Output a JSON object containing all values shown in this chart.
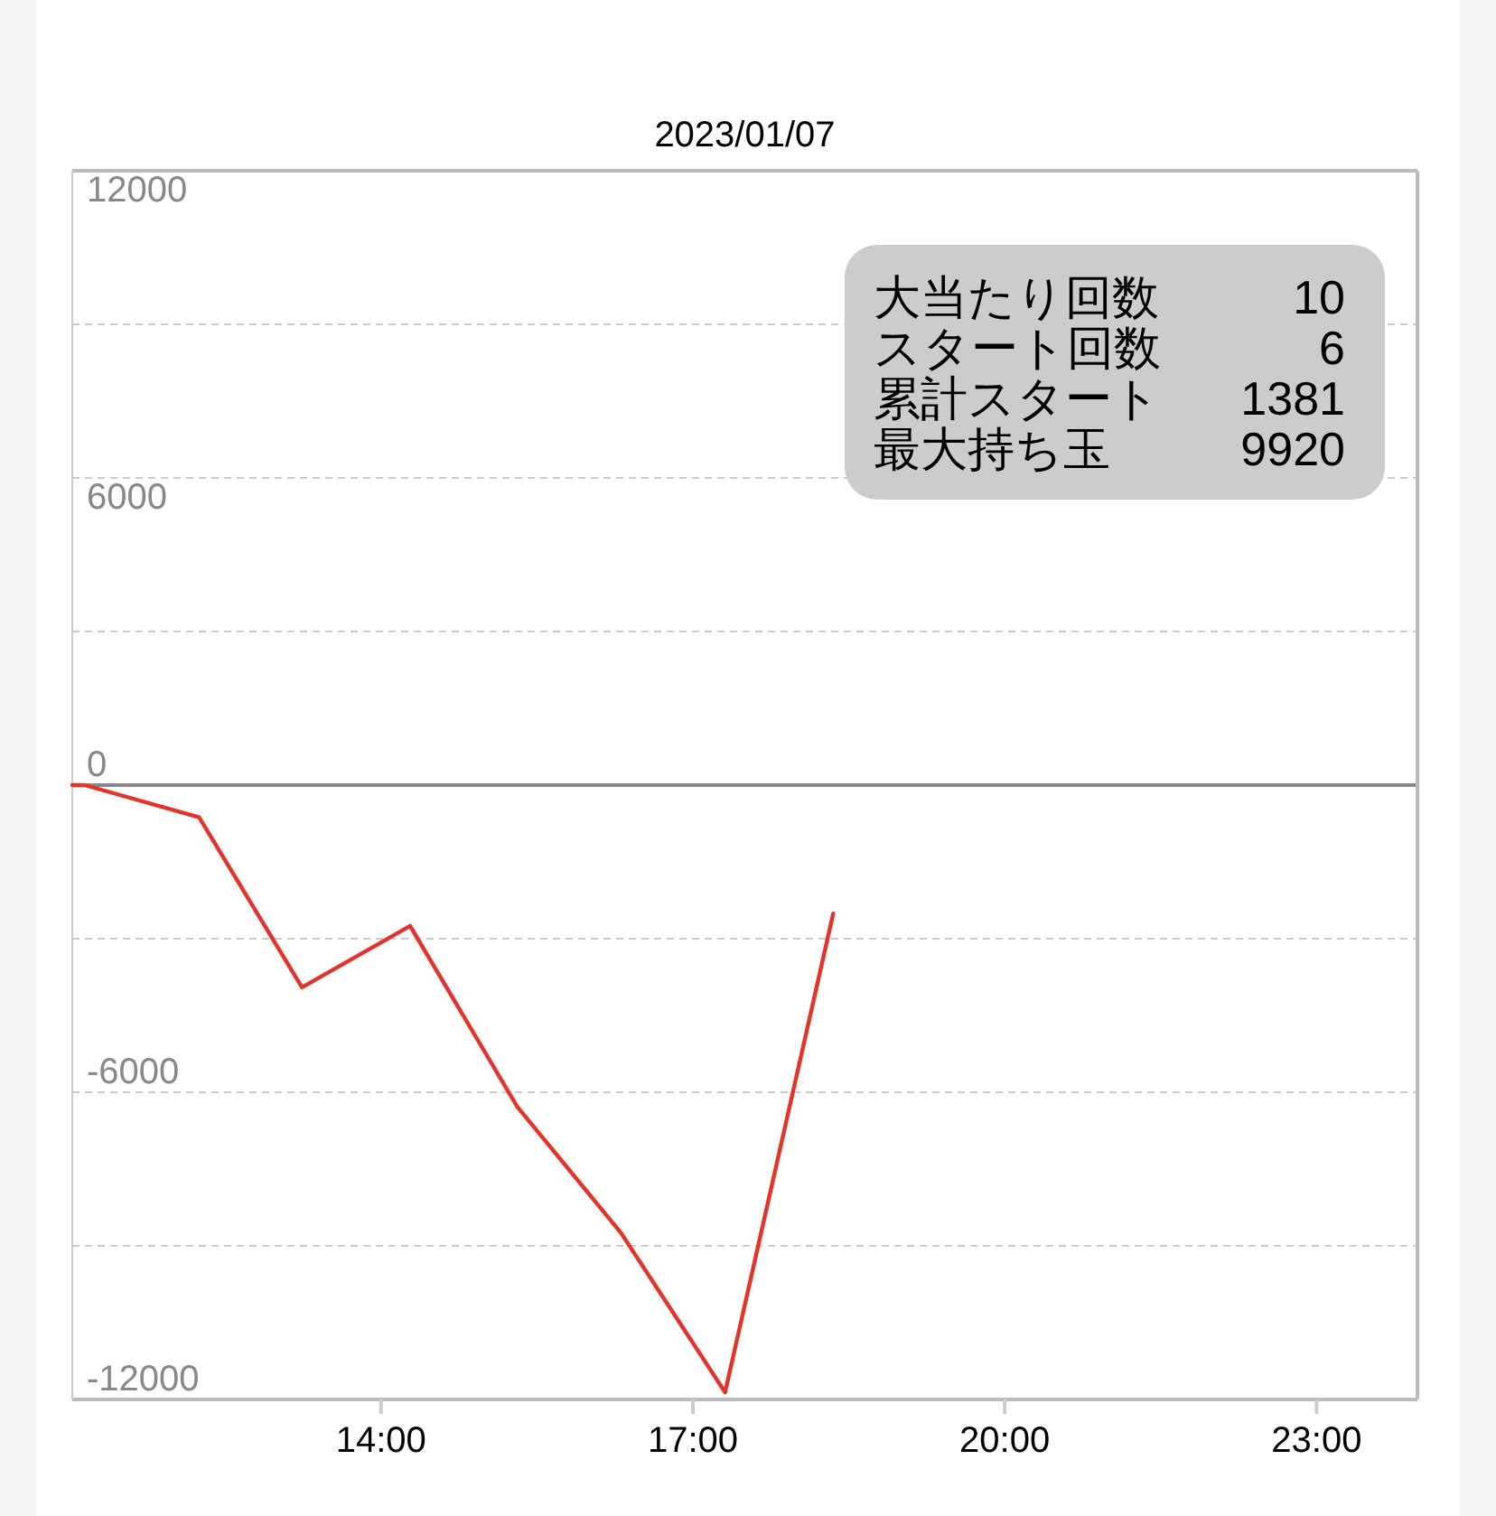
{
  "chart_data": {
    "type": "line",
    "title": "2023/01/07",
    "x": [
      11.03,
      11.15,
      12.25,
      13.24,
      14.28,
      15.31,
      16.31,
      17.31,
      18.35
    ],
    "series": [
      {
        "color": "#e5332a",
        "values": [
          0,
          0,
          -630,
          -3950,
          -2750,
          -6280,
          -8750,
          -11860,
          -2510
        ]
      }
    ],
    "xlim": [
      11.03,
      23.97
    ],
    "xticks": [
      {
        "value": 14,
        "label": "14:00"
      },
      {
        "value": 17,
        "label": "17:00"
      },
      {
        "value": 20,
        "label": "20:00"
      },
      {
        "value": 23,
        "label": "23:00"
      }
    ],
    "ylim": [
      -12000,
      12000
    ],
    "yticks": [
      -12000,
      {
        "value": -9000,
        "label": null
      },
      -6000,
      {
        "value": -3000,
        "label": null
      },
      0,
      {
        "value": 3000,
        "label": null
      },
      6000,
      {
        "value": 9000,
        "label": null
      },
      12000
    ],
    "grid": "y",
    "marker": "none",
    "line_style": "solid",
    "annotations": [
      "大当たり回数 10",
      "スタート回数 6",
      "累計スタート 1381",
      "最大持ち玉 9920"
    ]
  }
}
